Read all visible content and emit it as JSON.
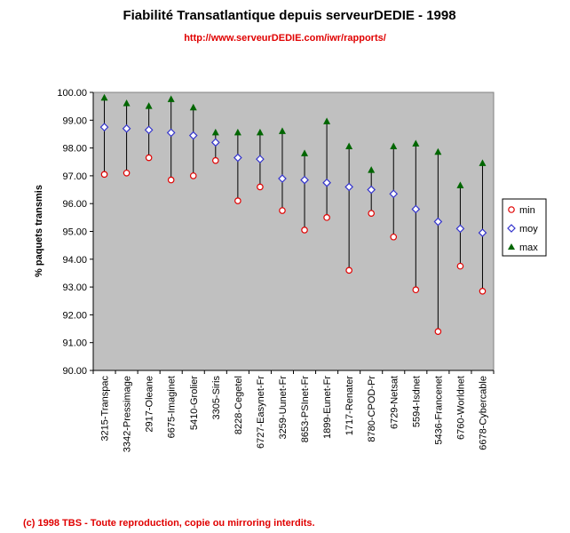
{
  "chart_data": {
    "type": "scatter",
    "title": "Fiabilité Transatlantique depuis serveurDEDIE - 1998",
    "subtitle": "http://www.serveurDEDIE.com/iwr/rapports/",
    "xlabel": "",
    "ylabel": "% paquets transmis",
    "ylim": [
      90,
      100
    ],
    "yticks": [
      "90.00",
      "91.00",
      "92.00",
      "93.00",
      "94.00",
      "95.00",
      "96.00",
      "97.00",
      "98.00",
      "99.00",
      "100.00"
    ],
    "legend_position": "right",
    "categories": [
      "3215-Transpac",
      "3342-Pressimage",
      "2917-Oleane",
      "6675-Imaginet",
      "5410-Grolier",
      "3305-Siris",
      "8228-Cegetel",
      "6727-Easynet-Fr",
      "3259-Uunet-Fr",
      "8653-PSInet-Fr",
      "1899-Eunet-Fr",
      "1717-Renater",
      "8780-CPOD-Pr",
      "6729-Netsat",
      "5594-Isdnet",
      "5436-Francenet",
      "6760-Worldnet",
      "6678-Cybercable"
    ],
    "series": [
      {
        "name": "min",
        "marker": "circle",
        "color": "#e00000",
        "values": [
          97.05,
          97.1,
          97.65,
          96.85,
          97.0,
          97.55,
          96.1,
          96.6,
          95.75,
          95.05,
          95.5,
          93.6,
          95.65,
          94.8,
          92.9,
          91.4,
          93.75,
          92.85
        ]
      },
      {
        "name": "moy",
        "marker": "diamond",
        "color": "#3333cc",
        "values": [
          98.75,
          98.7,
          98.65,
          98.55,
          98.45,
          98.2,
          97.65,
          97.6,
          96.9,
          96.85,
          96.75,
          96.6,
          96.5,
          96.35,
          95.8,
          95.35,
          95.1,
          94.95
        ]
      },
      {
        "name": "max",
        "marker": "triangle",
        "color": "#006600",
        "values": [
          99.8,
          99.6,
          99.5,
          99.75,
          99.45,
          98.55,
          98.55,
          98.55,
          98.6,
          97.8,
          98.95,
          98.05,
          97.2,
          98.05,
          98.15,
          97.85,
          96.65,
          97.45
        ]
      }
    ]
  },
  "footer": "(c) 1998 TBS - Toute reproduction, copie ou mirroring interdits."
}
